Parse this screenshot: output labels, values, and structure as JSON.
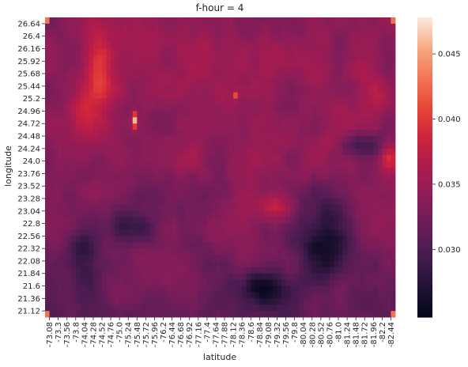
{
  "chart_data": {
    "type": "heatmap",
    "title": "f-hour = 4",
    "xlabel": "latitude",
    "ylabel": "longitude",
    "x_tick_labels": [
      "-73.08",
      "-73.3",
      "-73.56",
      "-73.8",
      "-74.04",
      "-74.28",
      "-74.52",
      "-74.76",
      "-75.0",
      "-75.24",
      "-75.48",
      "-75.72",
      "-75.96",
      "-76.2",
      "-76.44",
      "-76.68",
      "-76.92",
      "-77.16",
      "-77.4",
      "-77.64",
      "-77.88",
      "-78.12",
      "-78.36",
      "-78.6",
      "-78.84",
      "-79.08",
      "-79.32",
      "-79.56",
      "-79.8",
      "-80.04",
      "-80.28",
      "-80.52",
      "-80.76",
      "-81.0",
      "-81.24",
      "-81.48",
      "-81.72",
      "-81.96",
      "-82.2",
      "-82.44"
    ],
    "y_tick_labels": [
      "26.64",
      "26.4",
      "26.16",
      "25.92",
      "25.68",
      "25.44",
      "25.2",
      "24.96",
      "24.72",
      "24.48",
      "24.24",
      "24.0",
      "23.76",
      "23.52",
      "23.28",
      "23.04",
      "22.8",
      "22.56",
      "22.32",
      "22.08",
      "21.84",
      "21.6",
      "21.36",
      "21.12"
    ],
    "grid_rows": 48,
    "grid_cols": 80,
    "colorbar": {
      "range": [
        0.0248,
        0.0478
      ],
      "ticks": [
        "0.030",
        "0.035",
        "0.040",
        "0.045"
      ],
      "tick_values": [
        0.03,
        0.035,
        0.04,
        0.045
      ],
      "colormap": "rocket"
    },
    "regions_description_values": {
      "background": 0.035,
      "bright_spot_value": 0.047,
      "dark_minimum": 0.025
    }
  }
}
